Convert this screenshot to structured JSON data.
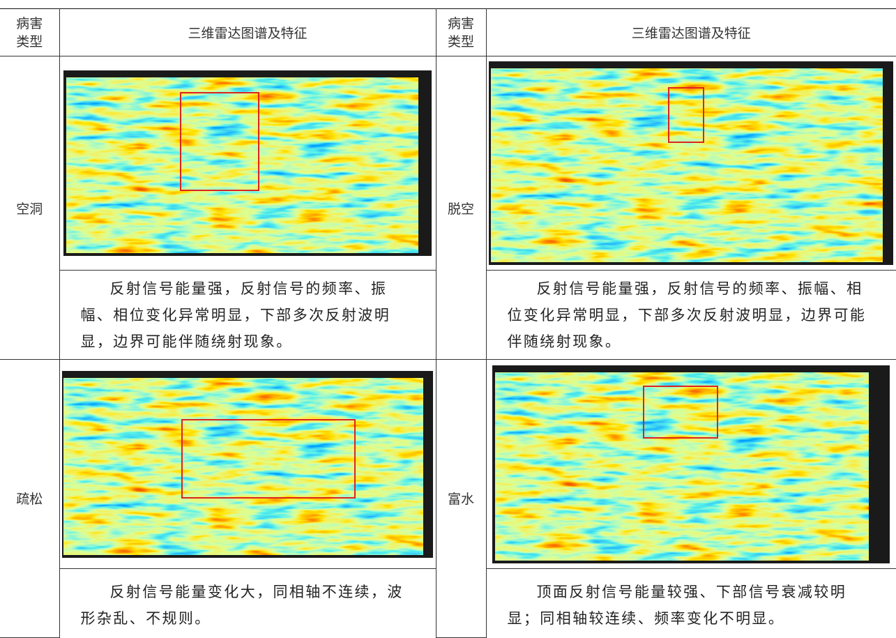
{
  "table": {
    "header": [
      "病害类型",
      "三维雷达图谱及特征",
      "病害类型",
      "三维雷达图谱及特征"
    ],
    "rows": [
      [
        {
          "type": "空洞",
          "description": "反射信号能量强，反射信号的频率、振幅、相位变化异常明显，下部多次反射波明显，边界可能伴随绕射现象。"
        },
        {
          "type": "脱空",
          "description": "反射信号能量强，反射信号的频率、振幅、相位变化异常明显，下部多次反射波明显，边界可能伴随绕射现象。"
        }
      ],
      [
        {
          "type": "疏松",
          "description": "反射信号能量变化大，同相轴不连续，波形杂乱、不规则。"
        },
        {
          "type": "富水",
          "description": "顶面反射信号能量较强、下部信号衰减较明显；同相轴较连续、频率变化不明显。"
        }
      ]
    ]
  }
}
